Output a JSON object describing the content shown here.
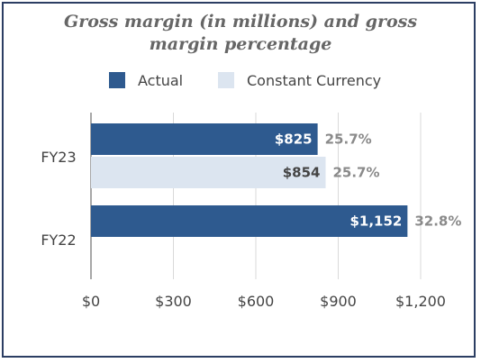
{
  "chart_data": {
    "type": "bar",
    "orientation": "horizontal",
    "title": "Gross margin (in millions) and gross margin percentage",
    "title_lines": [
      "Gross margin (in millions) and gross",
      "margin percentage"
    ],
    "categories": [
      "FY23",
      "FY22"
    ],
    "series": [
      {
        "name": "Actual",
        "color": "#2e5a8f",
        "values": [
          825,
          1152
        ],
        "value_labels": [
          "$825",
          "$1,152"
        ],
        "percent_labels": [
          "25.7%",
          "32.8%"
        ]
      },
      {
        "name": "Constant Currency",
        "color": "#dce5f0",
        "values": [
          854,
          null
        ],
        "value_labels": [
          "$854",
          null
        ],
        "percent_labels": [
          "25.7%",
          null
        ]
      }
    ],
    "xlim": [
      0,
      1400
    ],
    "xticks": [
      0,
      300,
      600,
      900,
      1200
    ],
    "xtick_labels": [
      "$0",
      "$300",
      "$600",
      "$900",
      "$1,200"
    ],
    "grid": true,
    "legend_position": "top"
  }
}
